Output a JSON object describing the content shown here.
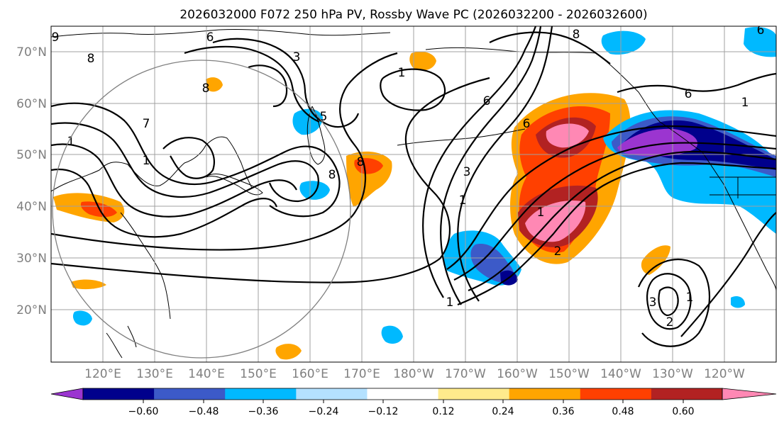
{
  "title": "2026032000 F072 250 hPa PV, Rossby Wave PC (2026032200 - 2026032600)",
  "lat_labels": [
    "70°N",
    "60°N",
    "50°N",
    "40°N",
    "30°N",
    "20°N"
  ],
  "lon_labels": [
    "120°E",
    "130°E",
    "140°E",
    "150°E",
    "160°E",
    "170°E",
    "180°W",
    "170°W",
    "160°W",
    "150°W",
    "140°W",
    "130°W",
    "120°W"
  ],
  "colorbar": {
    "ticks": [
      "−0.60",
      "−0.48",
      "−0.36",
      "−0.24",
      "−0.12",
      "0.12",
      "0.24",
      "0.36",
      "0.48",
      "0.60"
    ],
    "colors": [
      "#9b35d0",
      "#00008c",
      "#3c5ac8",
      "#00b9ff",
      "#b4e1ff",
      "#ffffff",
      "#ffeb8c",
      "#ffa500",
      "#ff4000",
      "#b22222",
      "#ff88b4"
    ]
  },
  "contour_labels": [
    "8",
    "1",
    "6",
    "3",
    "1",
    "5",
    "8",
    "7",
    "1",
    "8",
    "6",
    "3",
    "8",
    "1",
    "1",
    "6",
    "6",
    "2",
    "1",
    "2",
    "3",
    "1",
    "8",
    "6",
    "1",
    "9"
  ],
  "colors": {
    "grid": "#a0a0a0",
    "axis_label": "#7f7f7f"
  }
}
